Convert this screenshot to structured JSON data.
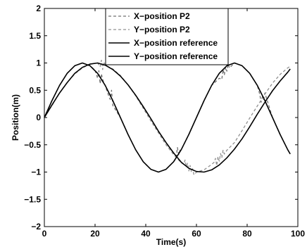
{
  "chart_data": {
    "type": "line",
    "title": "",
    "xlabel": "Time(s)",
    "ylabel": "Position(m)",
    "xlim": [
      0,
      100
    ],
    "ylim": [
      -2,
      2
    ],
    "xticks": [
      0,
      20,
      40,
      60,
      80,
      100
    ],
    "yticks": [
      -2,
      -1.5,
      -1,
      -0.5,
      0,
      0.5,
      1,
      1.5,
      2
    ],
    "ytick_labels": [
      "−2",
      "−1.5",
      "−1",
      "−0.5",
      "0",
      "0.5",
      "1",
      "1.5",
      "2"
    ],
    "grid": false,
    "legend_position": "top-right",
    "series": [
      {
        "name": "X−position P2",
        "style": "dashed",
        "color": "#707070",
        "x": [
          0,
          3,
          6,
          9,
          12,
          15,
          18,
          20,
          21,
          21.5,
          22,
          22.5,
          23,
          24,
          25,
          25.5,
          26,
          26.5,
          27,
          30,
          33,
          36,
          39,
          42,
          45,
          48,
          51,
          52,
          52.5,
          53,
          53.5,
          54,
          57,
          60,
          63,
          66,
          69,
          70,
          70.5,
          71,
          71.5,
          72,
          72.5,
          73,
          75,
          78,
          81,
          84,
          85,
          85.5,
          86,
          86.5,
          87,
          90,
          93,
          96,
          97
        ],
        "y": [
          0,
          0.31,
          0.59,
          0.81,
          0.95,
          1.0,
          0.95,
          0.87,
          0.72,
          0.86,
          0.62,
          0.8,
          0.7,
          0.58,
          0.45,
          0.38,
          0.33,
          0.5,
          0.22,
          -0.0,
          -0.31,
          -0.59,
          -0.81,
          -0.95,
          -1.0,
          -0.95,
          -0.81,
          -0.72,
          -0.55,
          -0.68,
          -0.6,
          -0.59,
          -0.31,
          0.0,
          0.31,
          0.59,
          0.72,
          0.7,
          0.88,
          0.78,
          0.92,
          0.85,
          0.98,
          0.91,
          1.0,
          0.95,
          0.81,
          0.59,
          0.42,
          0.28,
          0.38,
          0.33,
          0.45,
          -0.0,
          -0.31,
          -0.59,
          -0.67
        ]
      },
      {
        "name": "Y−position P2",
        "style": "dashed",
        "color": "#909090",
        "x": [
          0,
          3,
          6,
          9,
          12,
          15,
          18,
          21,
          22,
          22.5,
          23,
          23.5,
          24,
          27,
          30,
          33,
          36,
          39,
          42,
          45,
          48,
          51,
          54,
          55,
          55.5,
          56,
          56.5,
          57,
          57.5,
          58,
          58.5,
          59,
          60,
          63,
          66,
          67,
          67.5,
          68,
          68.5,
          69,
          69.5,
          70,
          70.5,
          71,
          72,
          75,
          78,
          81,
          84,
          87,
          90,
          93,
          96,
          97
        ],
        "y": [
          0,
          0.22,
          0.45,
          0.64,
          0.8,
          0.91,
          0.98,
          1.0,
          0.93,
          1.05,
          0.88,
          1.02,
          0.96,
          0.89,
          0.77,
          0.6,
          0.4,
          0.17,
          -0.06,
          -0.28,
          -0.5,
          -0.68,
          -0.83,
          -0.86,
          -0.78,
          -0.9,
          -0.84,
          -0.98,
          -0.88,
          -1.0,
          -0.94,
          -1.05,
          -1.0,
          -0.96,
          -0.86,
          -0.82,
          -0.75,
          -0.88,
          -0.72,
          -0.8,
          -0.66,
          -0.74,
          -0.6,
          -0.67,
          -0.6,
          -0.46,
          -0.24,
          -0.01,
          0.21,
          0.43,
          0.63,
          0.79,
          0.91,
          0.94
        ]
      },
      {
        "name": "X−position reference",
        "style": "solid",
        "color": "#000000",
        "x": [
          0,
          3,
          6,
          9,
          12,
          15,
          18,
          21,
          24,
          27,
          30,
          33,
          36,
          39,
          42,
          45,
          48,
          51,
          54,
          57,
          60,
          63,
          66,
          69,
          72,
          75,
          78,
          81,
          84,
          87,
          90,
          93,
          96,
          97
        ],
        "y": [
          0,
          0.31,
          0.59,
          0.81,
          0.95,
          1.0,
          0.95,
          0.81,
          0.59,
          0.31,
          0.0,
          -0.31,
          -0.59,
          -0.81,
          -0.95,
          -1.0,
          -0.95,
          -0.81,
          -0.59,
          -0.31,
          0.0,
          0.31,
          0.59,
          0.81,
          0.95,
          1.0,
          0.95,
          0.81,
          0.59,
          0.31,
          0.0,
          -0.31,
          -0.59,
          -0.67
        ]
      },
      {
        "name": "Y−position reference",
        "style": "solid",
        "color": "#000000",
        "x": [
          0,
          3,
          6,
          9,
          12,
          15,
          18,
          21,
          24,
          27,
          30,
          33,
          36,
          39,
          42,
          45,
          48,
          51,
          54,
          57,
          60,
          63,
          66,
          69,
          72,
          75,
          78,
          81,
          84,
          87,
          90,
          93,
          96,
          97
        ],
        "y": [
          0,
          0.23,
          0.45,
          0.64,
          0.81,
          0.92,
          0.98,
          1.0,
          0.96,
          0.88,
          0.76,
          0.6,
          0.41,
          0.2,
          -0.02,
          -0.25,
          -0.46,
          -0.65,
          -0.82,
          -0.93,
          -0.99,
          -1.0,
          -0.96,
          -0.87,
          -0.74,
          -0.58,
          -0.39,
          -0.17,
          0.06,
          0.28,
          0.49,
          0.67,
          0.83,
          0.89
        ]
      }
    ]
  }
}
